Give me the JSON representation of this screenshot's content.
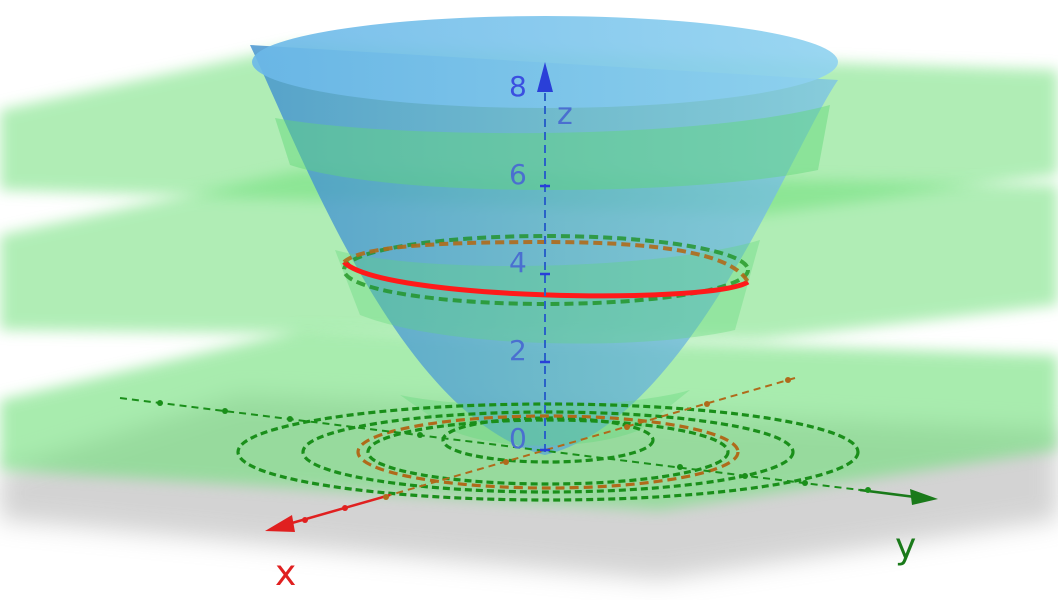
{
  "axes": {
    "x_label": "x",
    "y_label": "y",
    "z_label": "z",
    "z_ticks": [
      "0",
      "2",
      "4",
      "6",
      "8"
    ]
  },
  "colors": {
    "plane": "#6fe07a",
    "surface": "#5aa9d6",
    "level_curve": "#ff1a1a",
    "contour": "#1a8f1a",
    "x_axis": "#e02020",
    "y_axis": "#1a7a1a",
    "z_axis": "#2a3fd8"
  }
}
